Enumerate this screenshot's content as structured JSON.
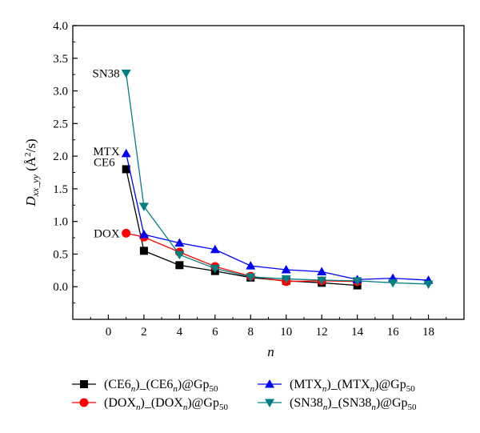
{
  "chart_data": {
    "type": "line",
    "title": "",
    "xlabel": "n",
    "ylabel": "D_xx_yy (Å²/s)",
    "xlim": [
      -2,
      20
    ],
    "ylim": [
      -0.5,
      4.0
    ],
    "xticks": [
      0,
      2,
      4,
      6,
      8,
      10,
      12,
      14,
      16,
      18
    ],
    "yticks": [
      0.0,
      0.5,
      1.0,
      1.5,
      2.0,
      2.5,
      3.0,
      3.5,
      4.0
    ],
    "xtick_labels": [
      "0",
      "2",
      "4",
      "6",
      "8",
      "10",
      "12",
      "14",
      "16",
      "18"
    ],
    "ytick_labels": [
      "0.0",
      "0.5",
      "1.0",
      "1.5",
      "2.0",
      "2.5",
      "3.0",
      "3.5",
      "4.0"
    ],
    "grid": false,
    "legend_position": "bottom",
    "series": [
      {
        "name": "(CE6n)_(CE6n)@Gp50",
        "color": "#000000",
        "marker": "square",
        "x": [
          1,
          2,
          4,
          6,
          8,
          10,
          12,
          14
        ],
        "y": [
          1.8,
          0.55,
          0.33,
          0.24,
          0.14,
          0.09,
          0.06,
          0.02
        ]
      },
      {
        "name": "(DOXn)_(DOXn)@Gp50",
        "color": "#ff0000",
        "marker": "circle",
        "x": [
          1,
          2,
          4,
          6,
          8,
          10,
          12,
          14
        ],
        "y": [
          0.82,
          0.76,
          0.53,
          0.31,
          0.16,
          0.08,
          0.09,
          0.08
        ]
      },
      {
        "name": "(MTXn)_(MTXn)@Gp50",
        "color": "#0000ff",
        "marker": "triangle-up",
        "x": [
          1,
          2,
          4,
          6,
          8,
          10,
          12,
          14,
          16,
          18
        ],
        "y": [
          2.04,
          0.8,
          0.67,
          0.57,
          0.32,
          0.26,
          0.23,
          0.11,
          0.13,
          0.1
        ]
      },
      {
        "name": "(SN38n)_(SN38n)@Gp50",
        "color": "#008080",
        "marker": "triangle-down",
        "x": [
          1,
          2,
          4,
          6,
          8,
          10,
          12,
          14,
          16,
          18
        ],
        "y": [
          3.27,
          1.23,
          0.49,
          0.28,
          0.15,
          0.12,
          0.1,
          0.09,
          0.06,
          0.04
        ]
      }
    ],
    "annotations": [
      {
        "text": "SN38",
        "series": 3
      },
      {
        "text": "MTX",
        "series": 2
      },
      {
        "text": "CE6",
        "series": 0
      },
      {
        "text": "DOX",
        "series": 1
      }
    ],
    "legend": {
      "entries": [
        {
          "base1": "(CE6",
          "sub1": "n",
          "mid": ")_(CE6",
          "sub2": "n",
          "end": ")@Gp",
          "sub3": "50"
        },
        {
          "base1": "(DOX",
          "sub1": "n",
          "mid": ")_(DOX",
          "sub2": "n",
          "end": ")@Gp",
          "sub3": "50"
        },
        {
          "base1": "(MTX",
          "sub1": "n",
          "mid": ")_(MTX",
          "sub2": "n",
          "end": ")@Gp",
          "sub3": "50"
        },
        {
          "base1": "(SN38",
          "sub1": "n",
          "mid": ")_(SN38",
          "sub2": "n",
          "end": ")@Gp",
          "sub3": "50"
        }
      ]
    },
    "ylabel_parts": {
      "main": "D",
      "sub": "xx_yy",
      "units_open": " (Å",
      "units_sup": "2",
      "units_close": "/s)"
    }
  }
}
